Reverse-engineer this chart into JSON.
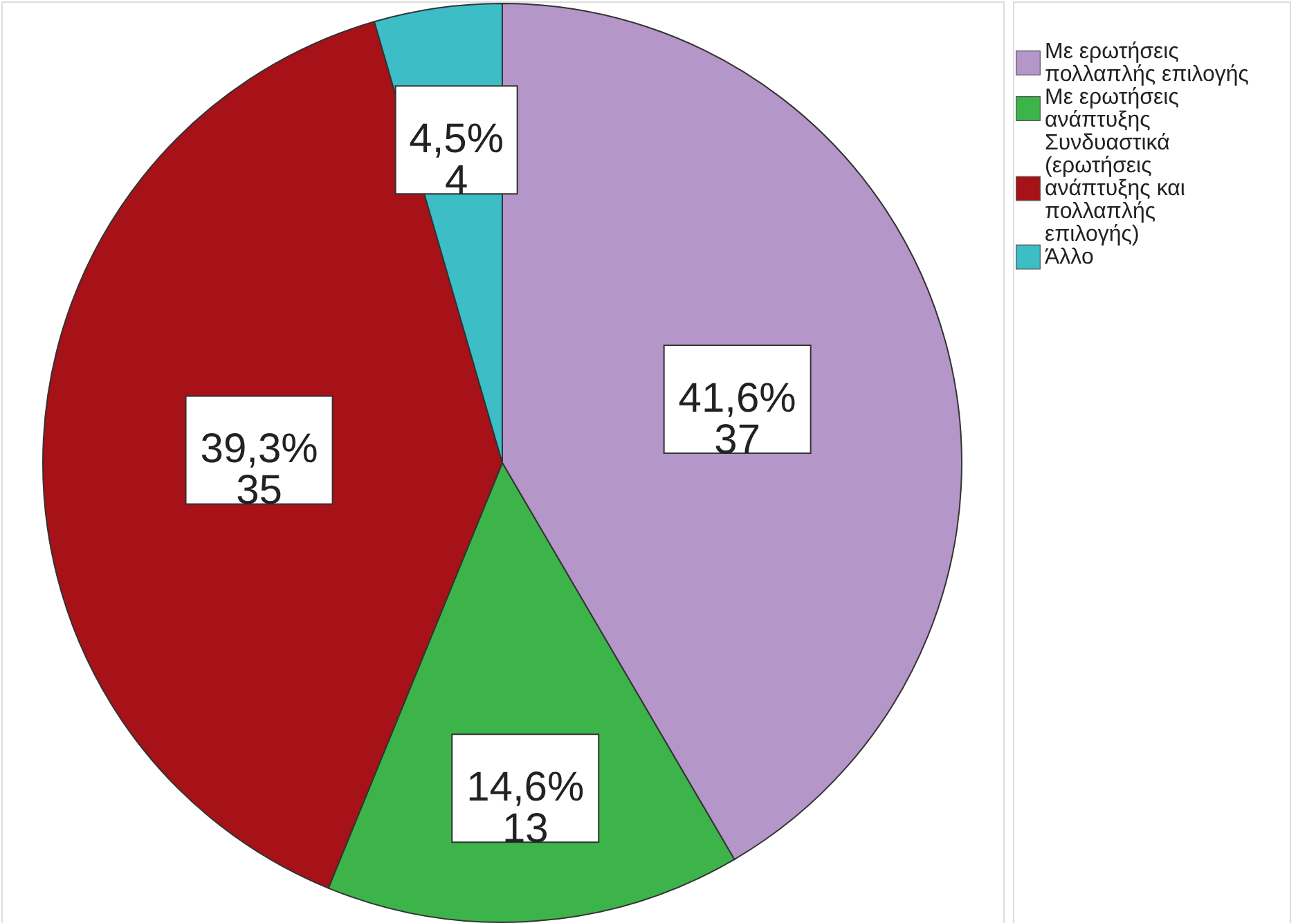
{
  "chart_data": {
    "type": "pie",
    "categories": [
      "Με ερωτήσεις πολλαπλής επιλογής",
      "Με ερωτήσεις ανάπτυξης",
      "Συνδυαστικά (ερωτήσεις ανάπτυξης και πολλαπλής επιλογής)",
      "Άλλο"
    ],
    "values": [
      37,
      13,
      35,
      4
    ],
    "colors": [
      "#b596c8",
      "#3cb44a",
      "#a61217",
      "#3dbdc6"
    ],
    "value_labels": [
      "41,6%\n37",
      "14,6%\n13",
      "39,3%\n35",
      "4,5%\n4"
    ],
    "legend": "top right"
  }
}
